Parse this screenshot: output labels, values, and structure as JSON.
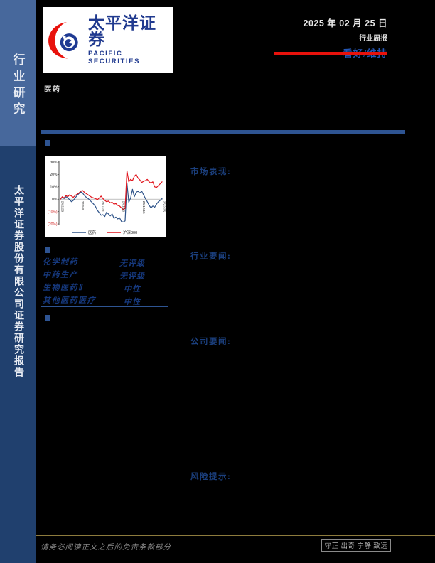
{
  "page": {
    "sidebar": {
      "top_label": "行业研究",
      "bottom_label": "太平洋证券股份有限公司证券研究报告"
    },
    "brand": {
      "name_cn": "太平洋证券",
      "name_en": "PACIFIC SECURITIES"
    },
    "header": {
      "date": "2025 年 02 月 25 日",
      "report_type": "行业周报",
      "rating": "看好/维持"
    },
    "industry_label": "医药",
    "sections": {
      "market": "市场表现:",
      "industry_news": "行业要闻:",
      "company_news": "公司要闻:",
      "risk": "风险提示:"
    },
    "ratings_table": {
      "rows": [
        {
          "name": "化学制药",
          "rating": "无评级"
        },
        {
          "name": "中药生产",
          "rating": "无评级"
        },
        {
          "name": "生物医药Ⅱ",
          "rating": "中性"
        },
        {
          "name": "其他医药医疗",
          "rating": "中性"
        }
      ]
    },
    "footer": {
      "disclaimer": "请务必阅读正文之后的免责条款部分",
      "motto": "守正 出奇 宁静 致远"
    },
    "colors": {
      "accent_blue": "#2e5492",
      "heading_blue": "#1b3f7d",
      "brand_blue": "#203a8f",
      "brand_red": "#e8120c",
      "rating_blue": "#2456b4",
      "sidebar_top": "#47689c",
      "sidebar_bottom": "#20406e",
      "footer_gold": "#8d7b3d"
    }
  },
  "chart_data": {
    "type": "line",
    "title": "",
    "xlabel": "",
    "ylabel": "",
    "ylim": [
      -20,
      30
    ],
    "y_ticks": [
      "30%",
      "20%",
      "10%",
      "0%",
      "(10%)",
      "(20%)"
    ],
    "x_tick_indices": [
      0,
      11,
      22,
      33,
      44,
      55
    ],
    "x_tick_labels": [
      "24/2/26",
      "24/5/9",
      "24/7/21",
      "24/10/8",
      "24/12/16",
      "25/2/25"
    ],
    "grid": "zero-line-only",
    "legend_position": "bottom",
    "series": [
      {
        "name": "医药",
        "color": "#2e5389",
        "values": [
          0,
          1.5,
          0.5,
          2,
          1,
          -0.5,
          -2,
          -1,
          1,
          3,
          4.5,
          6,
          5,
          3,
          1.5,
          0.5,
          -1,
          -2.5,
          -4,
          -6,
          -9,
          -11,
          -13,
          -12.5,
          -14,
          -10.5,
          -12,
          -13.5,
          -12,
          -15.5,
          -14.5,
          -16,
          -15,
          -18,
          -18.5,
          -17.5,
          13,
          -2.5,
          1,
          8,
          2,
          5.5,
          6.5,
          5,
          6.5,
          3.5,
          0.5,
          -2,
          -5,
          -7,
          -5.5,
          -6.5,
          -4,
          -2,
          -1,
          0.5
        ]
      },
      {
        "name": "沪深300",
        "color": "#e1141c",
        "values": [
          0,
          2,
          1,
          3,
          2,
          3.5,
          2.5,
          1.5,
          3,
          4,
          5,
          6.5,
          7,
          5.5,
          4.5,
          3.5,
          2.5,
          1.5,
          1,
          0.5,
          -0.5,
          1,
          2.5,
          0.5,
          -1,
          -2,
          -1.5,
          -3,
          -2.5,
          -4,
          -3.5,
          -5,
          -5.5,
          -7,
          -8.5,
          -7.5,
          23,
          14,
          16,
          15,
          18.5,
          20,
          17,
          15.5,
          13.5,
          14.5,
          15,
          16,
          14,
          13,
          14,
          10,
          9.5,
          11,
          12.5,
          14
        ]
      }
    ]
  }
}
